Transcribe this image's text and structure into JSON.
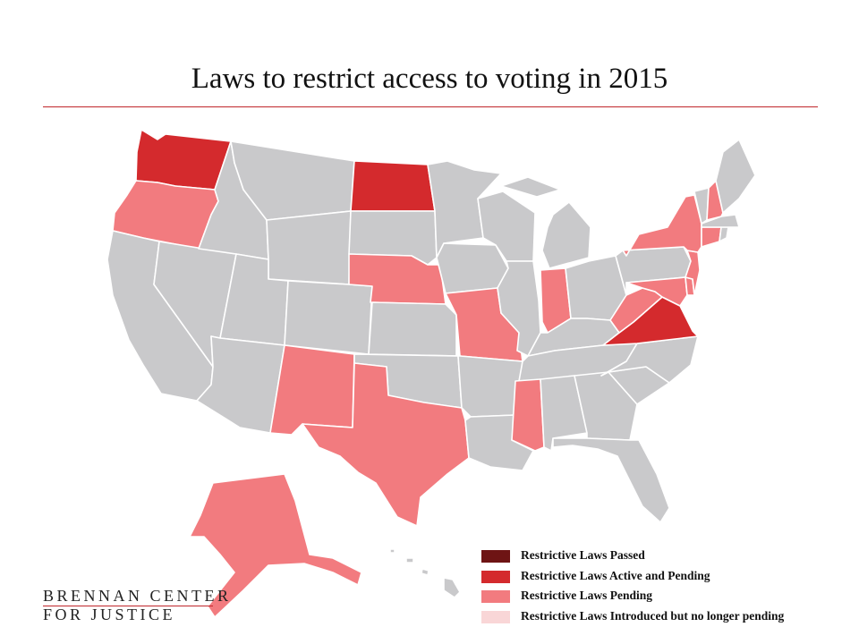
{
  "title": "Laws to restrict access to voting in 2015",
  "colors": {
    "passed": "#6e1414",
    "active_and_pending": "#d42a2d",
    "pending": "#f27b7f",
    "no_longer_pending": "#f9d6d7",
    "no_law": "#c9c9cb",
    "rule": "#c0262b"
  },
  "legend": [
    {
      "label": "Restrictive Laws Passed",
      "category": "passed"
    },
    {
      "label": "Restrictive Laws Active and Pending",
      "category": "active_and_pending"
    },
    {
      "label": "Restrictive Laws Pending",
      "category": "pending"
    },
    {
      "label": "Restrictive Laws Introduced but no longer pending",
      "category": "no_longer_pending"
    }
  ],
  "states": {
    "washington": "active_and_pending",
    "north-dakota": "active_and_pending",
    "virginia": "active_and_pending",
    "oregon": "pending",
    "nebraska": "pending",
    "missouri": "pending",
    "new-mexico": "pending",
    "texas": "pending",
    "alaska": "pending",
    "mississippi": "pending",
    "indiana": "pending",
    "west-virginia": "pending",
    "maryland": "pending",
    "delaware": "pending",
    "new-jersey": "pending",
    "new-york": "pending",
    "connecticut": "pending",
    "new-hampshire": "pending",
    "california": "no_law",
    "nevada": "no_law",
    "idaho": "no_law",
    "montana": "no_law",
    "wyoming": "no_law",
    "utah": "no_law",
    "arizona": "no_law",
    "colorado": "no_law",
    "south-dakota": "no_law",
    "kansas": "no_law",
    "oklahoma": "no_law",
    "minnesota": "no_law",
    "iowa": "no_law",
    "arkansas": "no_law",
    "louisiana": "no_law",
    "wisconsin": "no_law",
    "illinois": "no_law",
    "michigan": "no_law",
    "ohio": "no_law",
    "kentucky": "no_law",
    "tennessee": "no_law",
    "alabama": "no_law",
    "georgia": "no_law",
    "florida": "no_law",
    "south-carolina": "no_law",
    "north-carolina": "no_law",
    "pennsylvania": "no_law",
    "vermont": "no_law",
    "maine": "no_law",
    "massachusetts": "no_law",
    "rhode-island": "no_law",
    "hawaii": "no_law"
  },
  "logo": {
    "line1": "BRENNAN CENTER",
    "line2": "FOR JUSTICE"
  }
}
